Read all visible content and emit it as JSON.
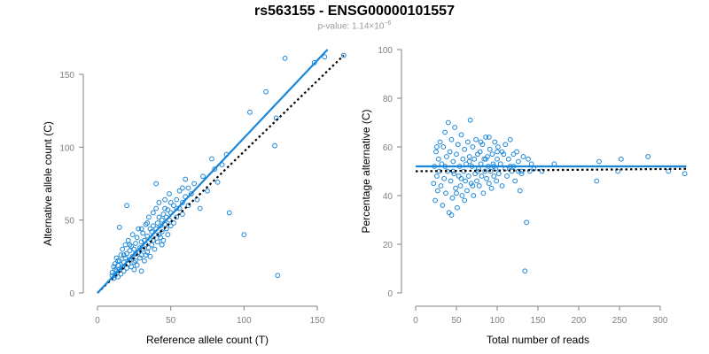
{
  "header": {
    "title": "rs563155 - ENSG00000101557",
    "pvalue_prefix": "p-value: 1.14×10",
    "pvalue_exponent": "−6"
  },
  "colors": {
    "points": "#1a86d9",
    "fit_line": "#1a86d9",
    "reference_line": "#000000",
    "axis": "#808080"
  },
  "chart_data": [
    {
      "type": "scatter",
      "title": "",
      "xlabel": "Reference allele count (T)",
      "ylabel": "Alternative allele count (C)",
      "xlim": [
        0,
        165
      ],
      "ylim": [
        0,
        160
      ],
      "xticks": [
        0,
        50,
        100,
        150
      ],
      "yticks": [
        0,
        50,
        100,
        150
      ],
      "grid": false,
      "fit_line": [
        [
          0,
          0
        ],
        [
          157,
          167
        ]
      ],
      "reference_line": [
        [
          0,
          0
        ],
        [
          168,
          163
        ]
      ],
      "points": [
        [
          10,
          12
        ],
        [
          10,
          14
        ],
        [
          11,
          10
        ],
        [
          11,
          18
        ],
        [
          12,
          12
        ],
        [
          12,
          20
        ],
        [
          13,
          15
        ],
        [
          13,
          24
        ],
        [
          14,
          11
        ],
        [
          14,
          19
        ],
        [
          15,
          16
        ],
        [
          15,
          22
        ],
        [
          16,
          13
        ],
        [
          16,
          26
        ],
        [
          17,
          18
        ],
        [
          17,
          30
        ],
        [
          18,
          15
        ],
        [
          18,
          21
        ],
        [
          19,
          24
        ],
        [
          19,
          33
        ],
        [
          20,
          17
        ],
        [
          20,
          27
        ],
        [
          21,
          20
        ],
        [
          21,
          36
        ],
        [
          22,
          23
        ],
        [
          22,
          29
        ],
        [
          23,
          18
        ],
        [
          23,
          32
        ],
        [
          24,
          25
        ],
        [
          24,
          40
        ],
        [
          25,
          21
        ],
        [
          25,
          30
        ],
        [
          26,
          27
        ],
        [
          26,
          34
        ],
        [
          27,
          19
        ],
        [
          27,
          38
        ],
        [
          28,
          28
        ],
        [
          28,
          44
        ],
        [
          29,
          24
        ],
        [
          29,
          31
        ],
        [
          30,
          35
        ],
        [
          30,
          26
        ],
        [
          31,
          30
        ],
        [
          31,
          41
        ],
        [
          32,
          22
        ],
        [
          32,
          36
        ],
        [
          33,
          33
        ],
        [
          33,
          47
        ],
        [
          34,
          28
        ],
        [
          34,
          39
        ],
        [
          35,
          31
        ],
        [
          35,
          52
        ],
        [
          36,
          37
        ],
        [
          36,
          25
        ],
        [
          37,
          42
        ],
        [
          37,
          33
        ],
        [
          38,
          36
        ],
        [
          38,
          55
        ],
        [
          39,
          40
        ],
        [
          39,
          30
        ],
        [
          40,
          44
        ],
        [
          40,
          58
        ],
        [
          41,
          35
        ],
        [
          41,
          48
        ],
        [
          42,
          40
        ],
        [
          42,
          62
        ],
        [
          43,
          46
        ],
        [
          43,
          38
        ],
        [
          44,
          50
        ],
        [
          44,
          42
        ],
        [
          45,
          54
        ],
        [
          45,
          36
        ],
        [
          46,
          47
        ],
        [
          46,
          64
        ],
        [
          47,
          44
        ],
        [
          47,
          52
        ],
        [
          48,
          57
        ],
        [
          48,
          40
        ],
        [
          49,
          50
        ],
        [
          49,
          68
        ],
        [
          50,
          46
        ],
        [
          50,
          55
        ],
        [
          52,
          60
        ],
        [
          52,
          48
        ],
        [
          54,
          64
        ],
        [
          54,
          52
        ],
        [
          56,
          58
        ],
        [
          56,
          70
        ],
        [
          58,
          62
        ],
        [
          58,
          54
        ],
        [
          60,
          66
        ],
        [
          60,
          78
        ],
        [
          62,
          60
        ],
        [
          62,
          72
        ],
        [
          64,
          68
        ],
        [
          66,
          75
        ],
        [
          68,
          64
        ],
        [
          70,
          58
        ],
        [
          72,
          80
        ],
        [
          75,
          70
        ],
        [
          78,
          92
        ],
        [
          80,
          85
        ],
        [
          82,
          76
        ],
        [
          85,
          88
        ],
        [
          88,
          95
        ],
        [
          20,
          60
        ],
        [
          15,
          45
        ],
        [
          40,
          75
        ],
        [
          90,
          55
        ],
        [
          30,
          15
        ],
        [
          100,
          40
        ],
        [
          104,
          124
        ],
        [
          115,
          138
        ],
        [
          121,
          101
        ],
        [
          122,
          120
        ],
        [
          123,
          12
        ],
        [
          128,
          161
        ],
        [
          148,
          158
        ],
        [
          155,
          162
        ],
        [
          168,
          163
        ],
        [
          12,
          16
        ],
        [
          14,
          22
        ],
        [
          18,
          26
        ],
        [
          22,
          33
        ],
        [
          26,
          22
        ],
        [
          30,
          44
        ],
        [
          34,
          48
        ],
        [
          38,
          46
        ],
        [
          42,
          52
        ],
        [
          46,
          58
        ],
        [
          50,
          62
        ],
        [
          54,
          58
        ],
        [
          58,
          72
        ],
        [
          33,
          26
        ],
        [
          44,
          33
        ],
        [
          25,
          16
        ],
        [
          36,
          44
        ]
      ]
    },
    {
      "type": "scatter",
      "title": "",
      "xlabel": "Total number of reads",
      "ylabel": "Percentage alternative (C)",
      "xlim": [
        0,
        335
      ],
      "ylim": [
        0,
        100
      ],
      "xticks": [
        0,
        50,
        100,
        150,
        200,
        250,
        300
      ],
      "yticks": [
        0,
        20,
        40,
        60,
        80,
        100
      ],
      "grid": false,
      "fit_line": [
        [
          0,
          52
        ],
        [
          332,
          52
        ]
      ],
      "reference_line": [
        [
          0,
          50
        ],
        [
          332,
          51
        ]
      ],
      "points": [
        [
          22,
          45
        ],
        [
          23,
          52
        ],
        [
          24,
          38
        ],
        [
          25,
          58
        ],
        [
          26,
          48
        ],
        [
          27,
          42
        ],
        [
          28,
          55
        ],
        [
          29,
          50
        ],
        [
          30,
          62
        ],
        [
          31,
          44
        ],
        [
          32,
          53
        ],
        [
          33,
          36
        ],
        [
          34,
          60
        ],
        [
          35,
          47
        ],
        [
          36,
          66
        ],
        [
          37,
          41
        ],
        [
          38,
          56
        ],
        [
          39,
          50
        ],
        [
          40,
          70
        ],
        [
          41,
          33
        ],
        [
          42,
          58
        ],
        [
          43,
          46
        ],
        [
          44,
          63
        ],
        [
          45,
          39
        ],
        [
          46,
          54
        ],
        [
          47,
          49
        ],
        [
          48,
          68
        ],
        [
          49,
          43
        ],
        [
          50,
          57
        ],
        [
          51,
          35
        ],
        [
          52,
          61
        ],
        [
          53,
          48
        ],
        [
          54,
          52
        ],
        [
          55,
          44
        ],
        [
          56,
          65
        ],
        [
          57,
          40
        ],
        [
          58,
          55
        ],
        [
          59,
          50
        ],
        [
          60,
          59
        ],
        [
          61,
          46
        ],
        [
          62,
          53
        ],
        [
          63,
          42
        ],
        [
          64,
          62
        ],
        [
          65,
          48
        ],
        [
          66,
          56
        ],
        [
          67,
          71
        ],
        [
          68,
          45
        ],
        [
          69,
          52
        ],
        [
          70,
          60
        ],
        [
          71,
          40
        ],
        [
          72,
          55
        ],
        [
          73,
          49
        ],
        [
          74,
          63
        ],
        [
          75,
          46
        ],
        [
          76,
          57
        ],
        [
          77,
          51
        ],
        [
          78,
          44
        ],
        [
          79,
          58
        ],
        [
          80,
          53
        ],
        [
          81,
          48
        ],
        [
          82,
          61
        ],
        [
          83,
          41
        ],
        [
          84,
          55
        ],
        [
          85,
          50
        ],
        [
          86,
          64
        ],
        [
          87,
          47
        ],
        [
          88,
          56
        ],
        [
          89,
          52
        ],
        [
          90,
          45
        ],
        [
          91,
          59
        ],
        [
          92,
          50
        ],
        [
          93,
          43
        ],
        [
          94,
          57
        ],
        [
          95,
          53
        ],
        [
          96,
          48
        ],
        [
          97,
          62
        ],
        [
          98,
          51
        ],
        [
          99,
          46
        ],
        [
          100,
          55
        ],
        [
          101,
          60
        ],
        [
          102,
          49
        ],
        [
          104,
          53
        ],
        [
          106,
          44
        ],
        [
          108,
          57
        ],
        [
          110,
          51
        ],
        [
          112,
          48
        ],
        [
          114,
          55
        ],
        [
          116,
          63
        ],
        [
          118,
          50
        ],
        [
          120,
          52
        ],
        [
          122,
          46
        ],
        [
          124,
          58
        ],
        [
          126,
          54
        ],
        [
          128,
          42
        ],
        [
          130,
          50
        ],
        [
          132,
          56
        ],
        [
          134,
          9
        ],
        [
          136,
          29
        ],
        [
          138,
          55
        ],
        [
          140,
          50
        ],
        [
          142,
          53
        ],
        [
          145,
          51
        ],
        [
          155,
          50
        ],
        [
          170,
          53
        ],
        [
          222,
          46
        ],
        [
          225,
          54
        ],
        [
          248,
          50
        ],
        [
          252,
          55
        ],
        [
          285,
          56
        ],
        [
          310,
          50
        ],
        [
          330,
          49
        ],
        [
          26,
          60
        ],
        [
          36,
          52
        ],
        [
          46,
          50
        ],
        [
          56,
          47
        ],
        [
          66,
          54
        ],
        [
          76,
          50
        ],
        [
          86,
          55
        ],
        [
          96,
          52
        ],
        [
          106,
          58
        ],
        [
          116,
          52
        ],
        [
          126,
          50
        ],
        [
          44,
          32
        ],
        [
          50,
          41
        ],
        [
          60,
          38
        ],
        [
          70,
          44
        ],
        [
          80,
          62
        ],
        [
          90,
          64
        ],
        [
          100,
          58
        ],
        [
          110,
          61
        ],
        [
          120,
          57
        ],
        [
          130,
          49
        ]
      ]
    }
  ]
}
